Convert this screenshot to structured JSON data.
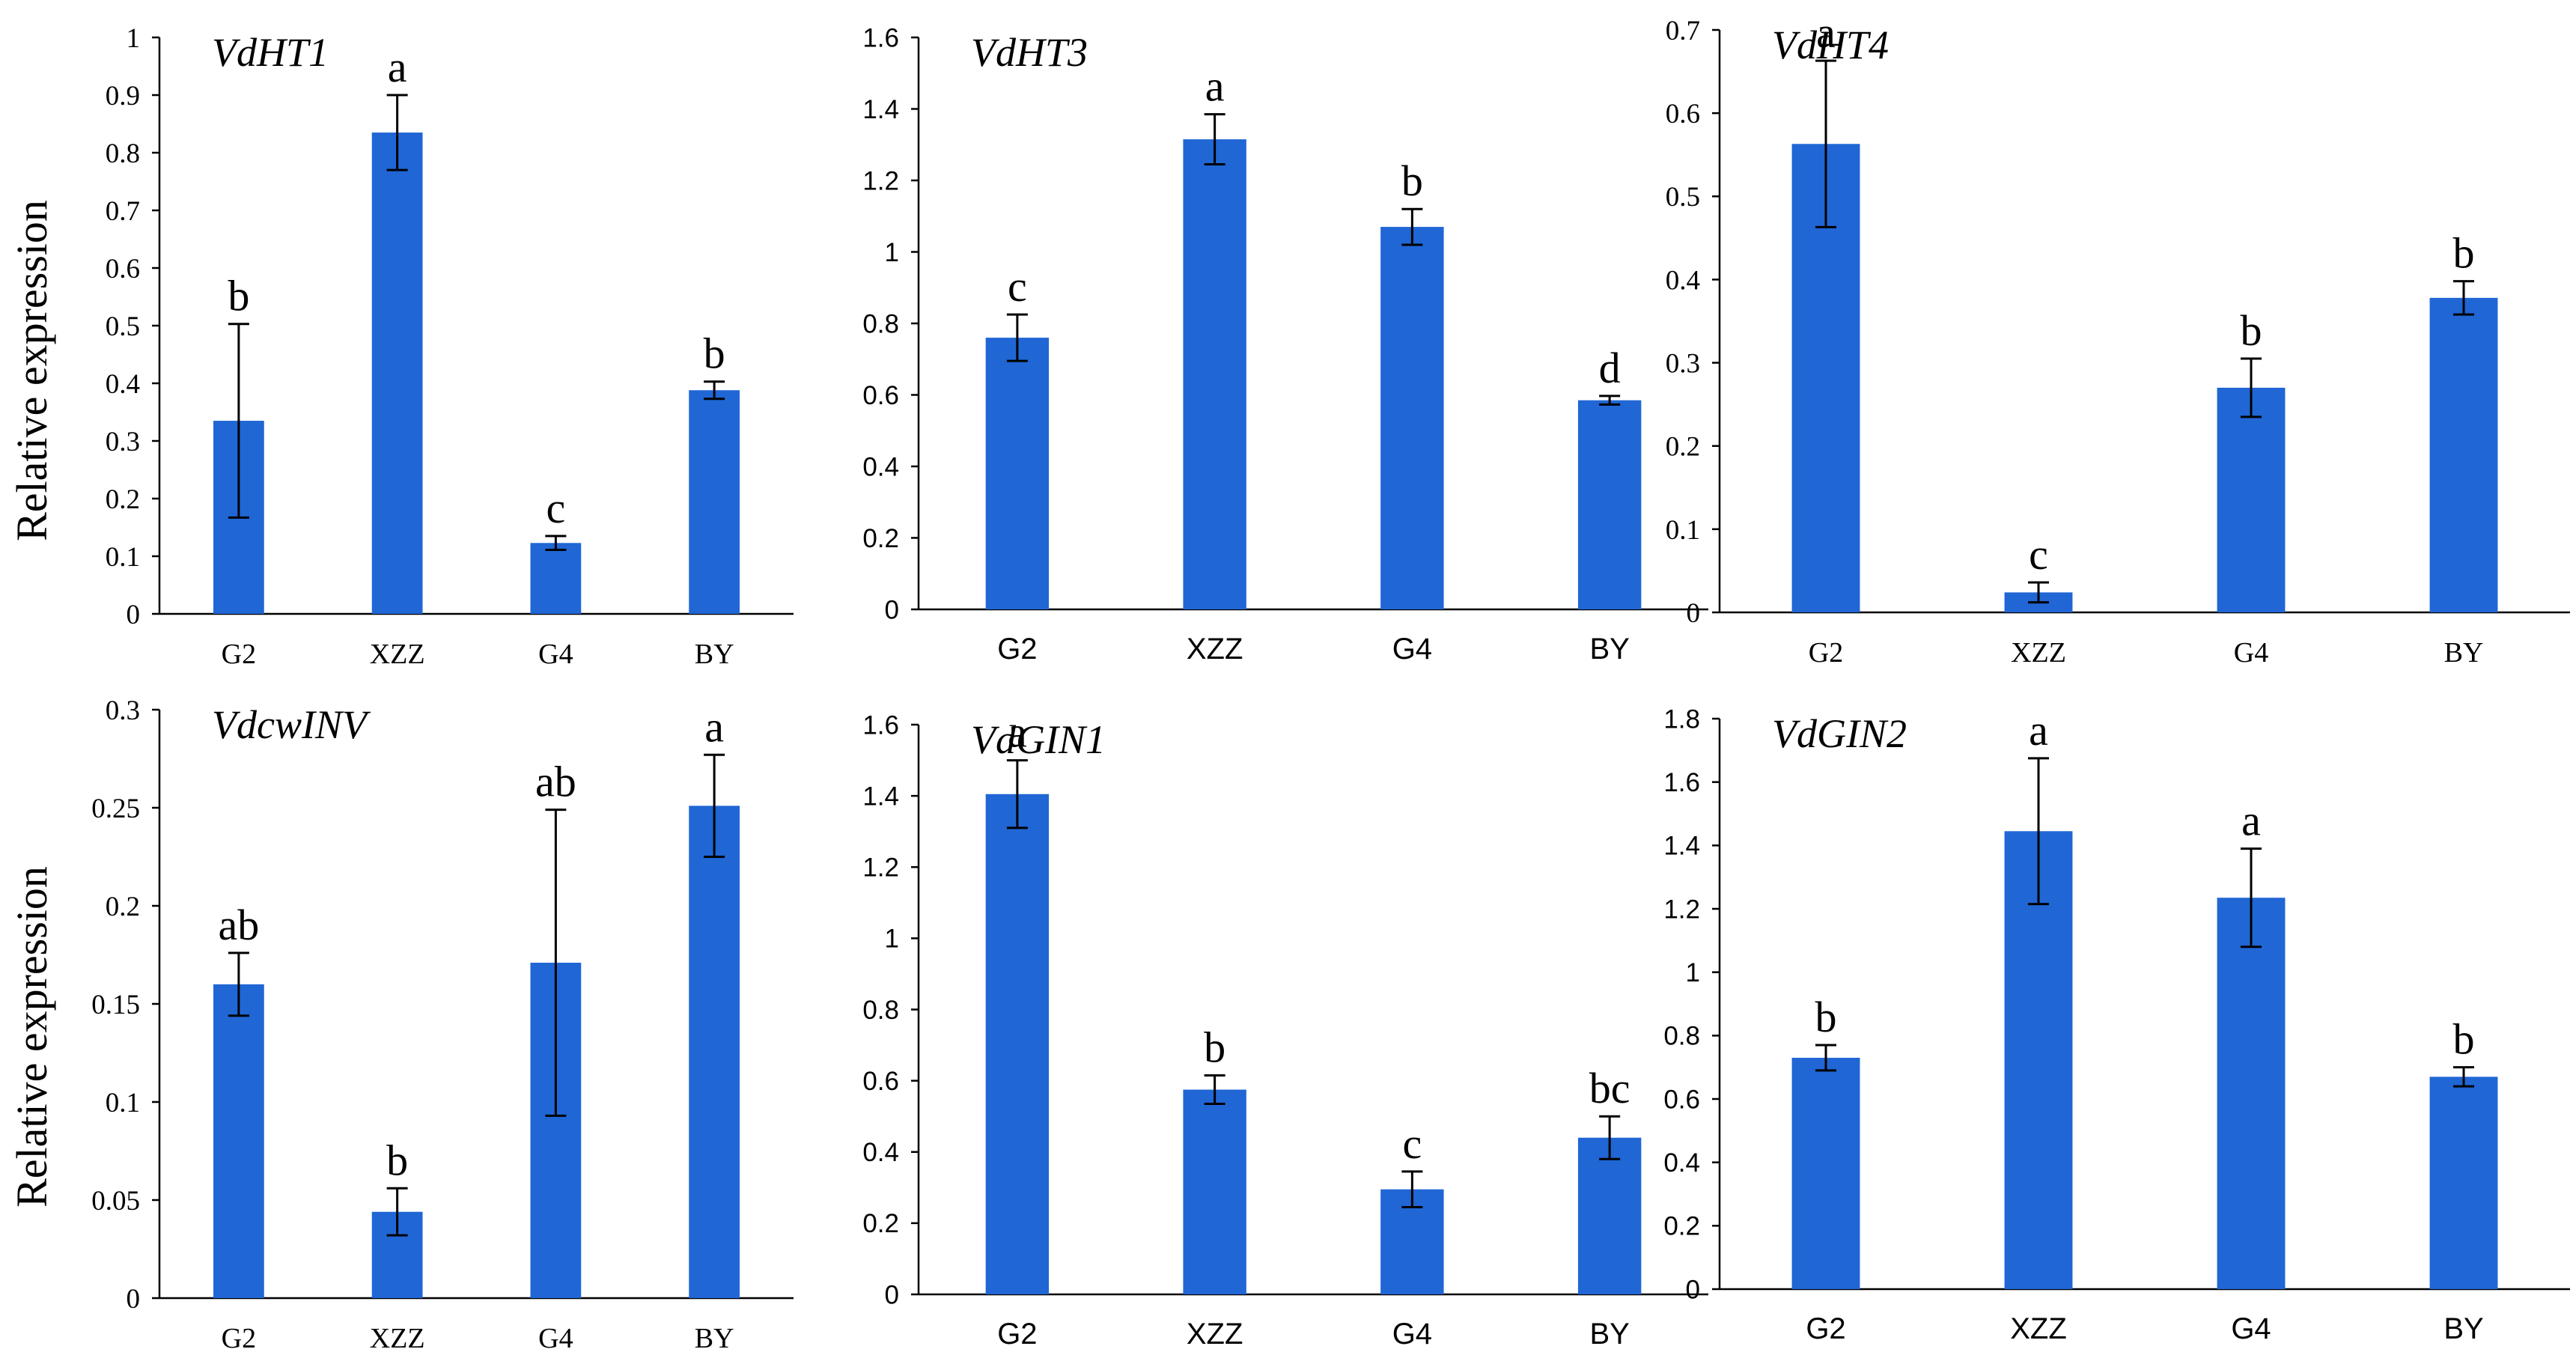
{
  "colors": {
    "bar": "#2066D5",
    "axis": "#000000",
    "errorbar": "#000000"
  },
  "y_axis_title": "Relative expression",
  "chart_data": [
    {
      "type": "bar",
      "title": "VdHT1",
      "ylabel": "Relative expression",
      "categories": [
        "G2",
        "XZZ",
        "G4",
        "BY"
      ],
      "values": [
        0.335,
        0.835,
        0.123,
        0.388
      ],
      "errors": [
        0.168,
        0.065,
        0.012,
        0.015
      ],
      "letters": [
        "b",
        "a",
        "c",
        "b"
      ],
      "ylim": [
        0,
        1
      ],
      "ytick_step": 0.1,
      "yticks": [
        "0",
        "0.1",
        "0.2",
        "0.3",
        "0.4",
        "0.5",
        "0.6",
        "0.7",
        "0.8",
        "0.9",
        "1"
      ],
      "tick_font": "serif"
    },
    {
      "type": "bar",
      "title": "VdHT3",
      "ylabel": "",
      "categories": [
        "G2",
        "XZZ",
        "G4",
        "BY"
      ],
      "values": [
        0.76,
        1.315,
        1.07,
        0.585
      ],
      "errors": [
        0.065,
        0.07,
        0.05,
        0.012
      ],
      "letters": [
        "c",
        "a",
        "b",
        "d"
      ],
      "ylim": [
        0,
        1.6
      ],
      "ytick_step": 0.2,
      "yticks": [
        "0",
        "0.2",
        "0.4",
        "0.6",
        "0.8",
        "1",
        "1.2",
        "1.4",
        "1.6"
      ],
      "tick_font": "sans"
    },
    {
      "type": "bar",
      "title": "VdHT4",
      "ylabel": "",
      "categories": [
        "G2",
        "XZZ",
        "G4",
        "BY"
      ],
      "values": [
        0.563,
        0.024,
        0.27,
        0.378
      ],
      "errors": [
        0.1,
        0.012,
        0.035,
        0.02
      ],
      "letters": [
        "a",
        "c",
        "b",
        "b"
      ],
      "ylim": [
        0,
        0.7
      ],
      "ytick_step": 0.1,
      "yticks": [
        "0",
        "0.1",
        "0.2",
        "0.3",
        "0.4",
        "0.5",
        "0.6",
        "0.7"
      ],
      "tick_font": "serif"
    },
    {
      "type": "bar",
      "title": "VdcwINV",
      "ylabel": "Relative expression",
      "categories": [
        "G2",
        "XZZ",
        "G4",
        "BY"
      ],
      "values": [
        0.16,
        0.044,
        0.171,
        0.251
      ],
      "errors": [
        0.016,
        0.012,
        0.078,
        0.026
      ],
      "letters": [
        "ab",
        "b",
        "ab",
        "a"
      ],
      "ylim": [
        0,
        0.3
      ],
      "ytick_step": 0.05,
      "yticks": [
        "0",
        "0.05",
        "0.1",
        "0.15",
        "0.2",
        "0.25",
        "0.3"
      ],
      "tick_font": "serif"
    },
    {
      "type": "bar",
      "title": "VdGIN1",
      "ylabel": "",
      "categories": [
        "G2",
        "XZZ",
        "G4",
        "BY"
      ],
      "values": [
        1.405,
        0.575,
        0.295,
        0.44
      ],
      "errors": [
        0.095,
        0.04,
        0.05,
        0.06
      ],
      "letters": [
        "a",
        "b",
        "c",
        "bc"
      ],
      "ylim": [
        0,
        1.6
      ],
      "ytick_step": 0.2,
      "yticks": [
        "0",
        "0.2",
        "0.4",
        "0.6",
        "0.8",
        "1",
        "1.2",
        "1.4",
        "1.6"
      ],
      "tick_font": "sans"
    },
    {
      "type": "bar",
      "title": "VdGIN2",
      "ylabel": "",
      "categories": [
        "G2",
        "XZZ",
        "G4",
        "BY"
      ],
      "values": [
        0.73,
        1.445,
        1.235,
        0.67
      ],
      "errors": [
        0.04,
        0.23,
        0.155,
        0.03
      ],
      "letters": [
        "b",
        "a",
        "a",
        "b"
      ],
      "ylim": [
        0,
        1.8
      ],
      "ytick_step": 0.2,
      "yticks": [
        "0",
        "0.2",
        "0.4",
        "0.6",
        "0.8",
        "1",
        "1.2",
        "1.4",
        "1.6",
        "1.8"
      ],
      "tick_font": "sans"
    }
  ]
}
